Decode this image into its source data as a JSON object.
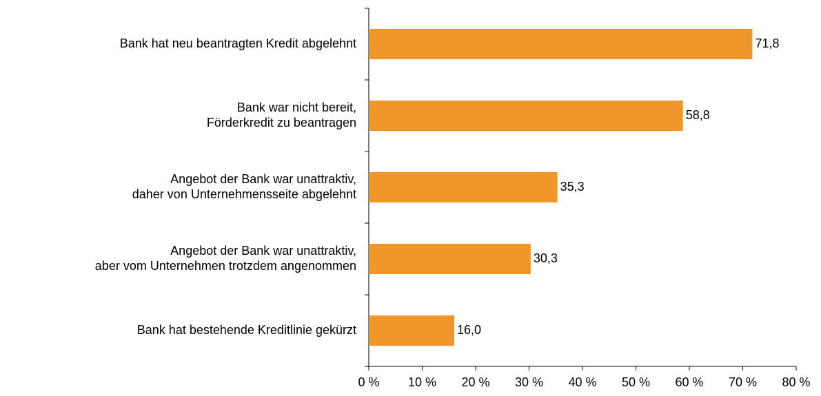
{
  "chart_data": {
    "type": "bar",
    "orientation": "horizontal",
    "categories": [
      [
        "Bank hat neu beantragten Kredit abgelehnt"
      ],
      [
        "Bank war nicht bereit,",
        "Förderkredit zu beantragen"
      ],
      [
        "Angebot der Bank war unattraktiv,",
        "daher von Unternehmensseite abgelehnt"
      ],
      [
        "Angebot der Bank war unattraktiv,",
        "aber vom Unternehmen trotzdem angenommen"
      ],
      [
        "Bank hat bestehende Kreditlinie gekürzt"
      ]
    ],
    "values": [
      71.8,
      58.8,
      35.3,
      30.3,
      16.0
    ],
    "value_labels": [
      "71,8",
      "58,8",
      "35,3",
      "30,3",
      "16,0"
    ],
    "color": "#f0962a",
    "xlim": [
      0,
      80
    ],
    "xticks": [
      {
        "value": 0,
        "label": "0 %"
      },
      {
        "value": 10,
        "label": "10 %"
      },
      {
        "value": 20,
        "label": "20 %"
      },
      {
        "value": 30,
        "label": "30 %"
      },
      {
        "value": 40,
        "label": "40 %"
      },
      {
        "value": 50,
        "label": "50 %"
      },
      {
        "value": 60,
        "label": "60 %"
      },
      {
        "value": 70,
        "label": "70 %"
      },
      {
        "value": 80,
        "label": "80 %"
      }
    ],
    "grid": false
  }
}
